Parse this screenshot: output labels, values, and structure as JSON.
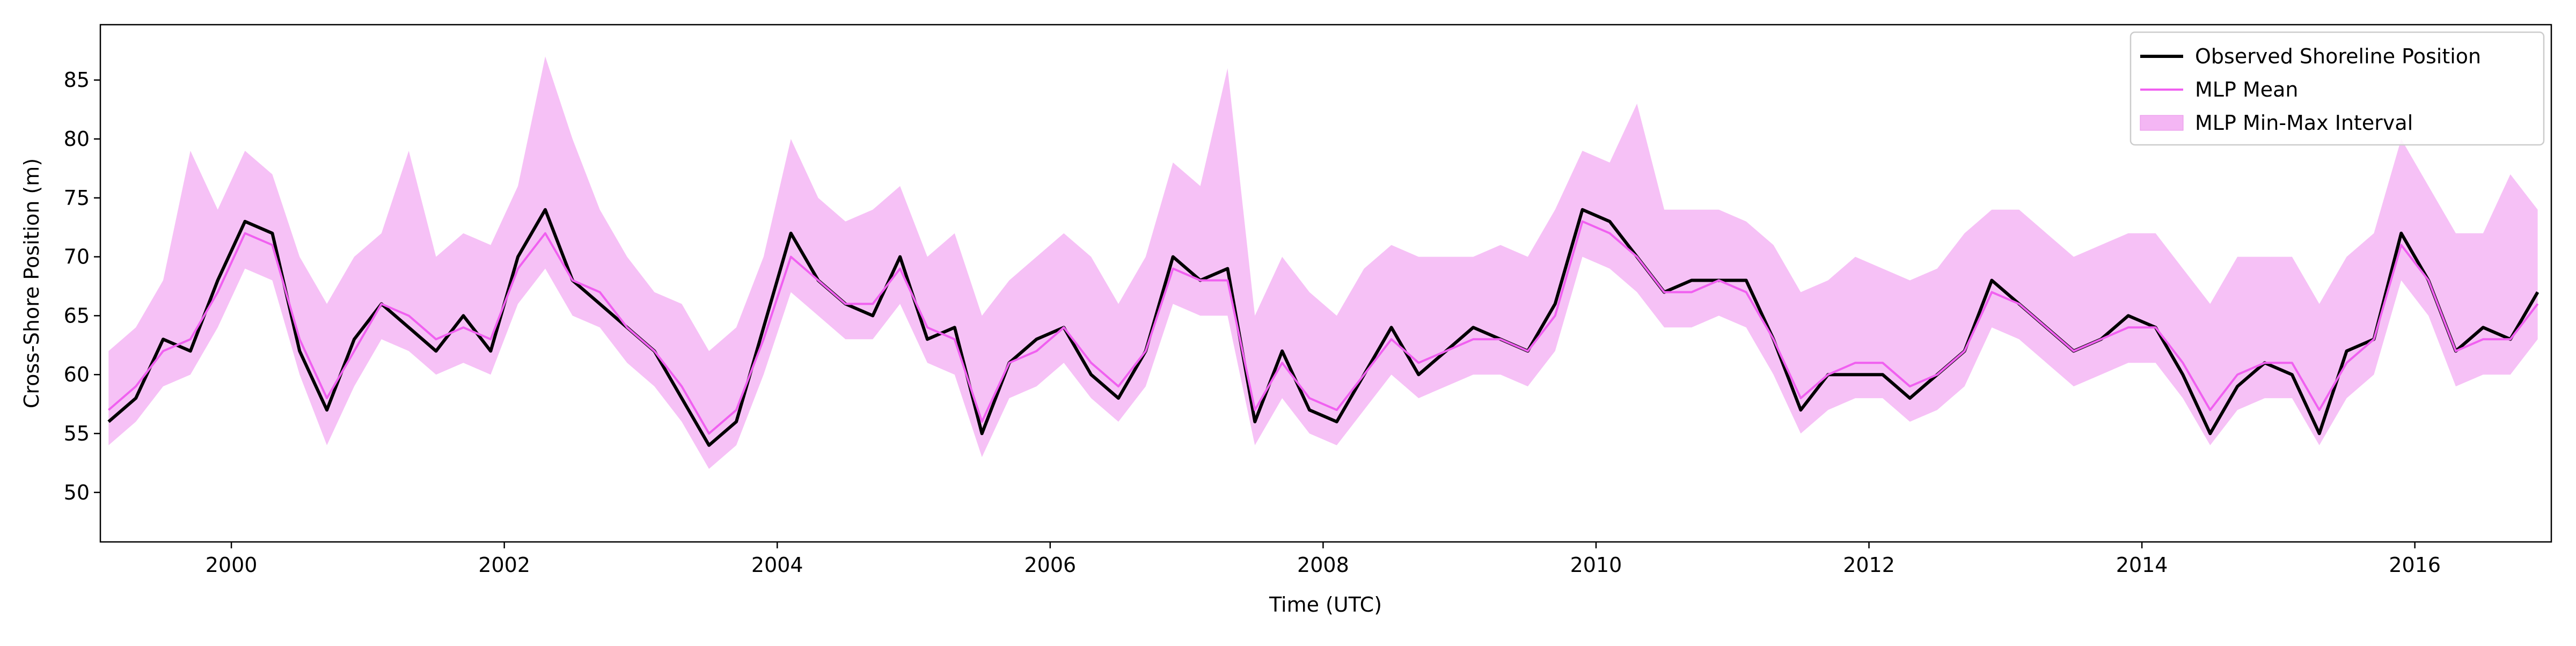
{
  "chart_data": {
    "type": "line",
    "x_label": "Time (UTC)",
    "y_label": "Cross-Shore Position (m)",
    "x": [
      1999.1,
      1999.3,
      1999.5,
      1999.7,
      1999.9,
      2000.1,
      2000.3,
      2000.5,
      2000.7,
      2000.9,
      2001.1,
      2001.3,
      2001.5,
      2001.7,
      2001.9,
      2002.1,
      2002.3,
      2002.5,
      2002.7,
      2002.9,
      2003.1,
      2003.3,
      2003.5,
      2003.7,
      2003.9,
      2004.1,
      2004.3,
      2004.5,
      2004.7,
      2004.9,
      2005.1,
      2005.3,
      2005.5,
      2005.7,
      2005.9,
      2006.1,
      2006.3,
      2006.5,
      2006.7,
      2006.9,
      2007.1,
      2007.3,
      2007.5,
      2007.7,
      2007.9,
      2008.1,
      2008.3,
      2008.5,
      2008.7,
      2008.9,
      2009.1,
      2009.3,
      2009.5,
      2009.7,
      2009.9,
      2010.1,
      2010.3,
      2010.5,
      2010.7,
      2010.9,
      2011.1,
      2011.3,
      2011.5,
      2011.7,
      2011.9,
      2012.1,
      2012.3,
      2012.5,
      2012.7,
      2012.9,
      2013.1,
      2013.3,
      2013.5,
      2013.7,
      2013.9,
      2014.1,
      2014.3,
      2014.5,
      2014.7,
      2014.9,
      2015.1,
      2015.3,
      2015.5,
      2015.7,
      2015.9,
      2016.1,
      2016.3,
      2016.5,
      2016.7,
      2016.9
    ],
    "series": [
      {
        "name": "Observed Shoreline Position",
        "color": "#000000",
        "values": [
          56,
          58,
          63,
          62,
          68,
          73,
          72,
          62,
          57,
          63,
          66,
          64,
          62,
          65,
          62,
          70,
          74,
          68,
          66,
          64,
          62,
          58,
          54,
          56,
          64,
          72,
          68,
          66,
          65,
          70,
          63,
          64,
          55,
          61,
          63,
          64,
          60,
          58,
          62,
          70,
          68,
          69,
          56,
          62,
          57,
          56,
          60,
          64,
          60,
          62,
          64,
          63,
          62,
          66,
          74,
          73,
          70,
          67,
          68,
          68,
          68,
          63,
          57,
          60,
          60,
          60,
          58,
          60,
          62,
          68,
          66,
          64,
          62,
          63,
          65,
          64,
          60,
          55,
          59,
          61,
          60,
          55,
          62,
          63,
          72,
          68,
          62,
          64,
          63,
          67
        ]
      },
      {
        "name": "MLP Mean",
        "color": "#f060f0",
        "values": [
          57,
          59,
          62,
          63,
          67,
          72,
          71,
          63,
          58,
          62,
          66,
          65,
          63,
          64,
          63,
          69,
          72,
          68,
          67,
          64,
          62,
          59,
          55,
          57,
          63,
          70,
          68,
          66,
          66,
          69,
          64,
          63,
          56,
          61,
          62,
          64,
          61,
          59,
          62,
          69,
          68,
          68,
          57,
          61,
          58,
          57,
          60,
          63,
          61,
          62,
          63,
          63,
          62,
          65,
          73,
          72,
          70,
          67,
          67,
          68,
          67,
          63,
          58,
          60,
          61,
          61,
          59,
          60,
          62,
          67,
          66,
          64,
          62,
          63,
          64,
          64,
          61,
          57,
          60,
          61,
          61,
          57,
          61,
          63,
          71,
          68,
          62,
          63,
          63,
          66
        ]
      },
      {
        "name": "MLP Min-Max Interval",
        "color": "#f4b6f4",
        "lower": [
          54,
          56,
          59,
          60,
          64,
          69,
          68,
          60,
          54,
          59,
          63,
          62,
          60,
          61,
          60,
          66,
          69,
          65,
          64,
          61,
          59,
          56,
          52,
          54,
          60,
          67,
          65,
          63,
          63,
          66,
          61,
          60,
          53,
          58,
          59,
          61,
          58,
          56,
          59,
          66,
          65,
          65,
          54,
          58,
          55,
          54,
          57,
          60,
          58,
          59,
          60,
          60,
          59,
          62,
          70,
          69,
          67,
          64,
          64,
          65,
          64,
          60,
          55,
          57,
          58,
          58,
          56,
          57,
          59,
          64,
          63,
          61,
          59,
          60,
          61,
          61,
          58,
          54,
          57,
          58,
          58,
          54,
          58,
          60,
          68,
          65,
          59,
          60,
          60,
          63
        ],
        "upper": [
          62,
          64,
          68,
          79,
          74,
          79,
          77,
          70,
          66,
          70,
          72,
          79,
          70,
          72,
          71,
          76,
          87,
          80,
          74,
          70,
          67,
          66,
          62,
          64,
          70,
          80,
          75,
          73,
          74,
          76,
          70,
          72,
          65,
          68,
          70,
          72,
          70,
          66,
          70,
          78,
          76,
          86,
          65,
          70,
          67,
          65,
          69,
          71,
          70,
          70,
          70,
          71,
          70,
          74,
          79,
          78,
          83,
          74,
          74,
          74,
          73,
          71,
          67,
          68,
          70,
          69,
          68,
          69,
          72,
          74,
          74,
          72,
          70,
          71,
          72,
          72,
          69,
          66,
          70,
          70,
          70,
          66,
          70,
          72,
          80,
          76,
          72,
          72,
          77,
          74
        ]
      }
    ],
    "xlim": [
      1999.04,
      2017.0
    ],
    "xticks": [
      2000,
      2002,
      2004,
      2006,
      2008,
      2010,
      2012,
      2014,
      2016
    ],
    "ylim": [
      45.8,
      89.7
    ],
    "yticks": [
      50,
      55,
      60,
      65,
      70,
      75,
      80,
      85
    ],
    "legend": "upper right"
  }
}
